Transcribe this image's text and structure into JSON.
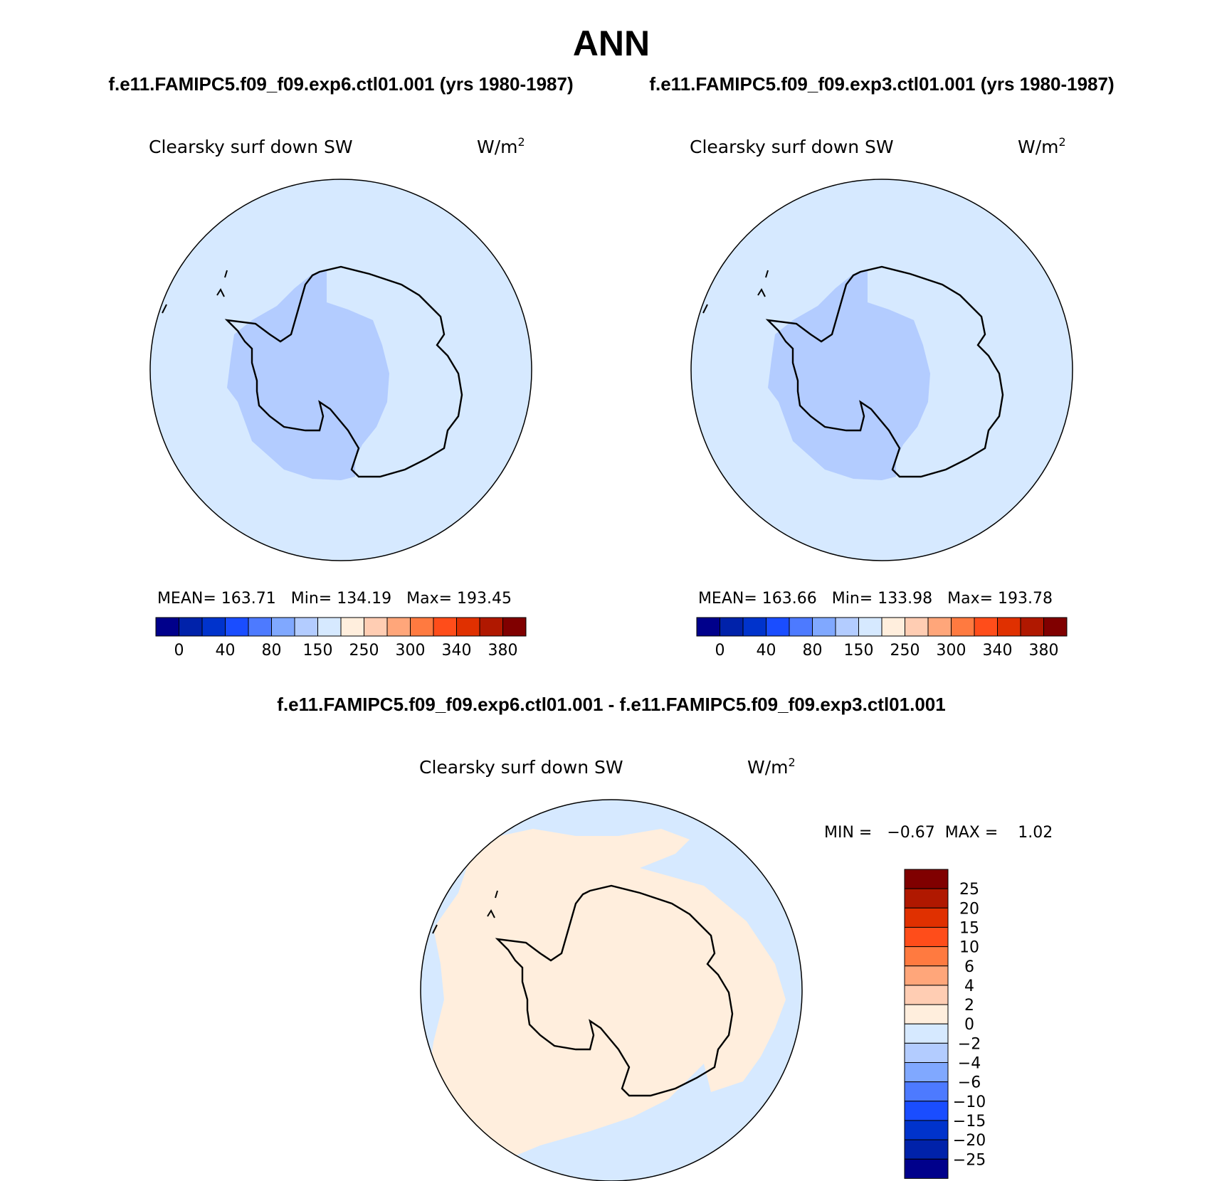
{
  "title": "ANN",
  "panels": [
    {
      "case_label": "f.e11.FAMIPC5.f09_f09.exp6.ctl01.001 (yrs 1980-1987)",
      "variable": "Clearsky surf down SW",
      "units": "W/m",
      "units_sup": "2",
      "stats": "MEAN= 163.71   Min= 134.19   Max= 193.45"
    },
    {
      "case_label": "f.e11.FAMIPC5.f09_f09.exp3.ctl01.001 (yrs 1980-1987)",
      "variable": "Clearsky surf down SW",
      "units": "W/m",
      "units_sup": "2",
      "stats": "MEAN= 163.66   Min= 133.98   Max= 193.78"
    }
  ],
  "diff_panel": {
    "case_label": "f.e11.FAMIPC5.f09_f09.exp6.ctl01.001 - f.e11.FAMIPC5.f09_f09.exp3.ctl01.001",
    "variable": "Clearsky surf down SW",
    "units": "W/m",
    "units_sup": "2",
    "minmax": "MIN =   −0.67  MAX =    1.02"
  },
  "colorbar": {
    "colors": [
      "#00008b",
      "#0022aa",
      "#0033cc",
      "#1a4dff",
      "#4d7aff",
      "#80a8ff",
      "#b3ccff",
      "#d6e9ff",
      "#ffeedd",
      "#ffcdb3",
      "#ffa67a",
      "#ff7a40",
      "#ff4d1a",
      "#e03000",
      "#b01800",
      "#800000"
    ],
    "tick_labels": [
      "0",
      "40",
      "80",
      "150",
      "250",
      "300",
      "340",
      "380"
    ]
  },
  "diff_colorbar": {
    "colors": [
      "#00008b",
      "#0022aa",
      "#0033cc",
      "#1a4dff",
      "#4d7aff",
      "#80a8ff",
      "#b3ccff",
      "#d6e9ff",
      "#ffeedd",
      "#ffcdb3",
      "#ffa67a",
      "#ff7a40",
      "#ff4d1a",
      "#e03000",
      "#b01800",
      "#800000"
    ],
    "tick_labels": [
      "−25",
      "−20",
      "−15",
      "−10",
      "−6",
      "−4",
      "−2",
      "0",
      "2",
      "4",
      "6",
      "10",
      "15",
      "20",
      "25"
    ]
  },
  "map_colors": {
    "ocean": "#d6e9ff",
    "low_region": "#b3ccff",
    "diff_positive": "#ffeedd"
  }
}
